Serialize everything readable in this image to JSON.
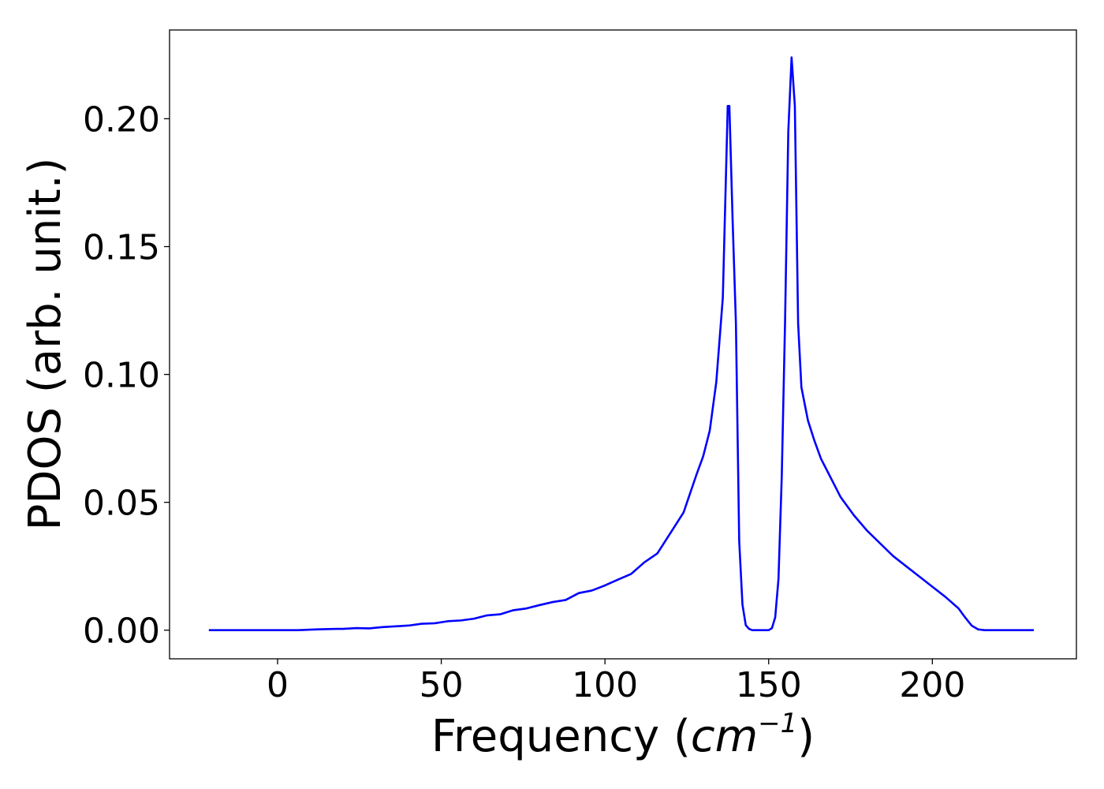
{
  "chart_data": {
    "type": "line",
    "title": "",
    "xlabel": "Frequency",
    "xlabel_unit_base": "cm",
    "xlabel_unit_exp": "−1",
    "ylabel": "PDOS (arb. unit.)",
    "xlim": [
      -33,
      244
    ],
    "ylim": [
      -0.0112,
      0.2347
    ],
    "xticks": [
      0,
      50,
      100,
      150,
      200
    ],
    "yticks": [
      0.0,
      0.05,
      0.1,
      0.15,
      0.2
    ],
    "xtick_labels": [
      "0",
      "50",
      "100",
      "150",
      "200"
    ],
    "ytick_labels": [
      "0.00",
      "0.05",
      "0.10",
      "0.15",
      "0.20"
    ],
    "grid": false,
    "legend": "none",
    "series": [
      {
        "color": "#0000ff",
        "x": [
          -21,
          0,
          6,
          12,
          18,
          20,
          24,
          28,
          32,
          36,
          40,
          44,
          48,
          52,
          56,
          60,
          64,
          68,
          72,
          76,
          80,
          84,
          88,
          92,
          96,
          100,
          104,
          108,
          112,
          116,
          120,
          124,
          128,
          130,
          132,
          134,
          136,
          137.5,
          138,
          139,
          140,
          141,
          142,
          143,
          144,
          145,
          146,
          148,
          150,
          151,
          152,
          153,
          154,
          155,
          156,
          157,
          158,
          159,
          160,
          162,
          164,
          166,
          168,
          170,
          172,
          176,
          180,
          184,
          188,
          192,
          196,
          200,
          204,
          208,
          210,
          212,
          214,
          216,
          231
        ],
        "y": [
          0.0,
          0.0,
          0.0,
          0.0003,
          0.0005,
          0.0005,
          0.0008,
          0.0007,
          0.0012,
          0.0015,
          0.0018,
          0.0025,
          0.0027,
          0.0035,
          0.0038,
          0.0045,
          0.0058,
          0.0062,
          0.0078,
          0.0085,
          0.0098,
          0.011,
          0.0118,
          0.0145,
          0.0155,
          0.0175,
          0.0198,
          0.022,
          0.0265,
          0.03,
          0.038,
          0.046,
          0.061,
          0.068,
          0.078,
          0.097,
          0.13,
          0.205,
          0.205,
          0.16,
          0.12,
          0.035,
          0.01,
          0.002,
          0.0005,
          0.0,
          0.0,
          0.0,
          0.0,
          0.0008,
          0.005,
          0.02,
          0.06,
          0.12,
          0.195,
          0.224,
          0.205,
          0.12,
          0.095,
          0.082,
          0.074,
          0.067,
          0.062,
          0.057,
          0.052,
          0.045,
          0.039,
          0.034,
          0.029,
          0.025,
          0.021,
          0.017,
          0.013,
          0.0085,
          0.005,
          0.0018,
          0.0003,
          0.0,
          0.0
        ]
      }
    ]
  }
}
